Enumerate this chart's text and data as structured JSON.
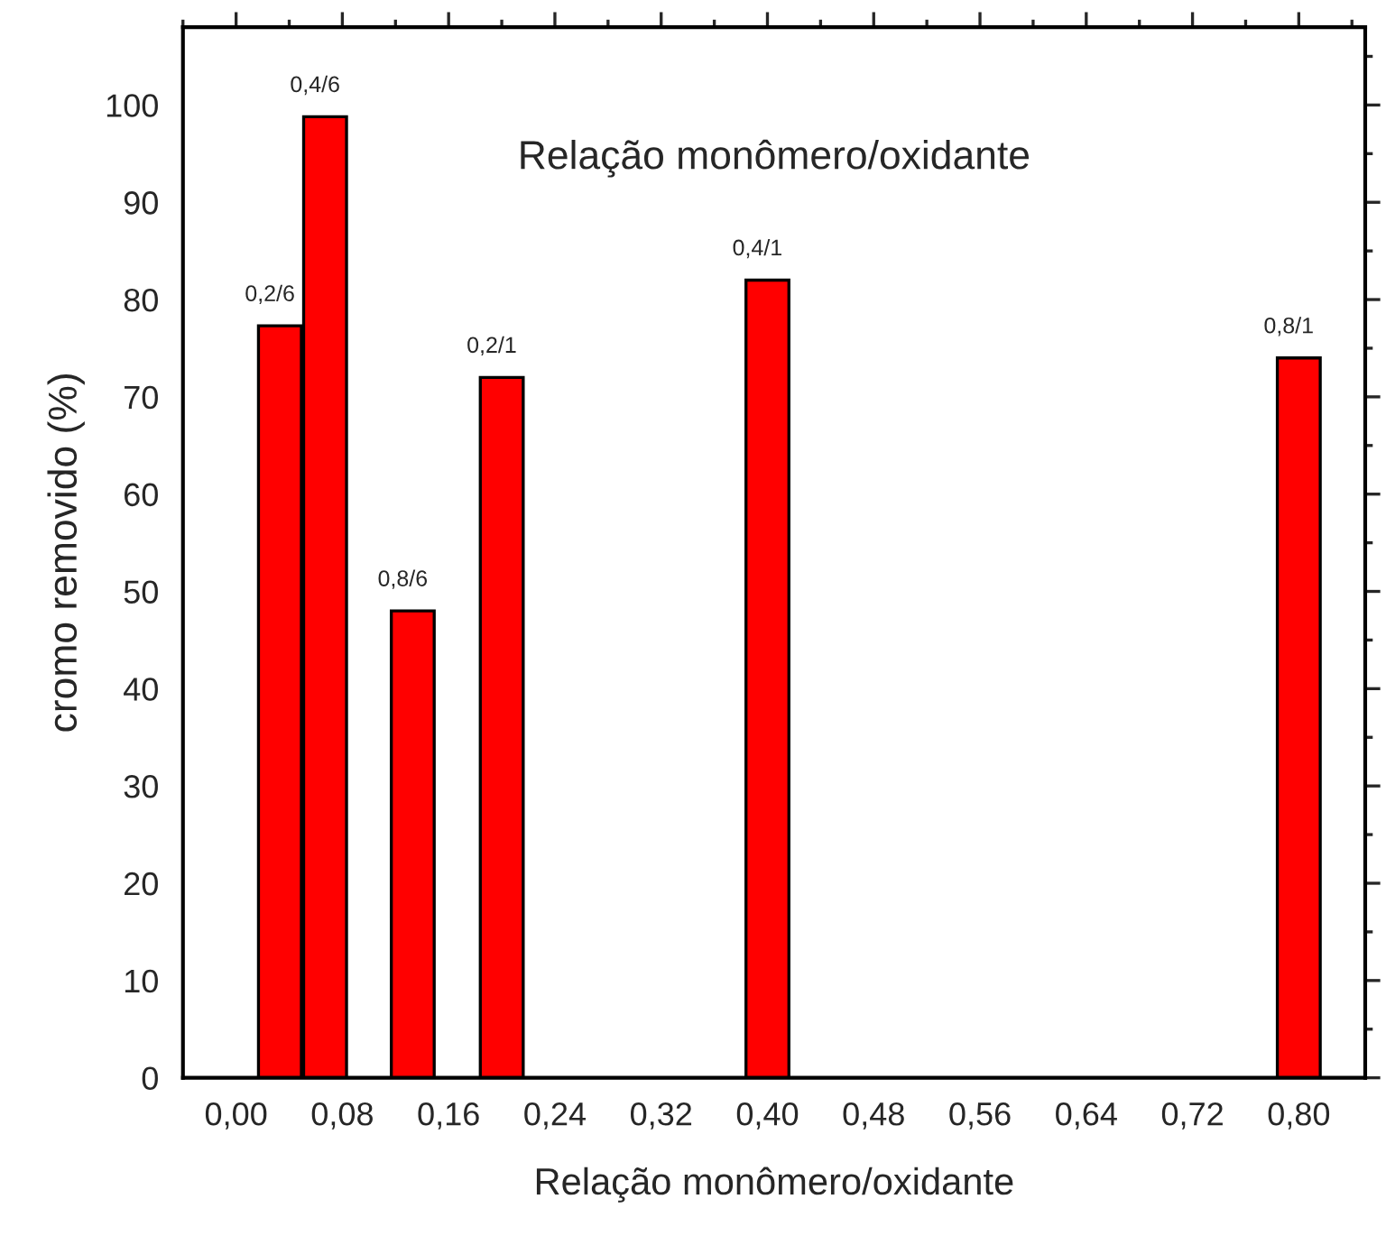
{
  "chart_data": {
    "type": "bar",
    "xlabel": "Relação monômero/oxidante",
    "ylabel": "cromo removido (%)",
    "x": [
      0.033,
      0.067,
      0.133,
      0.2,
      0.4,
      0.8
    ],
    "series": [
      {
        "color": "#ff0000",
        "values": [
          77.3,
          98.8,
          48,
          72,
          82,
          74
        ]
      }
    ],
    "annotations": [
      "Relação monômero/oxidante",
      {
        "text": "0,2/6",
        "x": 0.033,
        "y": 77.3
      },
      {
        "text": "0,4/6",
        "x": 0.067,
        "y": 98.8
      },
      {
        "text": "0,8/6",
        "x": 0.133,
        "y": 48
      },
      {
        "text": "0,2/1",
        "x": 0.2,
        "y": 72
      },
      {
        "text": "0,4/1",
        "x": 0.4,
        "y": 82
      },
      {
        "text": "0,8/1",
        "x": 0.8,
        "y": 74
      }
    ],
    "xlim": [
      -0.04,
      0.85
    ],
    "ylim": [
      0,
      108
    ],
    "xticks": [
      {
        "value": 0,
        "label": "0,00"
      },
      {
        "value": 0.08,
        "label": "0,08"
      },
      {
        "value": 0.16,
        "label": "0,16"
      },
      {
        "value": 0.24,
        "label": "0,24"
      },
      {
        "value": 0.32,
        "label": "0,32"
      },
      {
        "value": 0.4,
        "label": "0,40"
      },
      {
        "value": 0.48,
        "label": "0,48"
      },
      {
        "value": 0.56,
        "label": "0,56"
      },
      {
        "value": 0.64,
        "label": "0,64"
      },
      {
        "value": 0.72,
        "label": "0,72"
      },
      {
        "value": 0.8,
        "label": "0,80"
      }
    ],
    "yticks": [
      0,
      10,
      20,
      30,
      40,
      50,
      60,
      70,
      80,
      90,
      100
    ],
    "grid": false,
    "legend": false
  }
}
